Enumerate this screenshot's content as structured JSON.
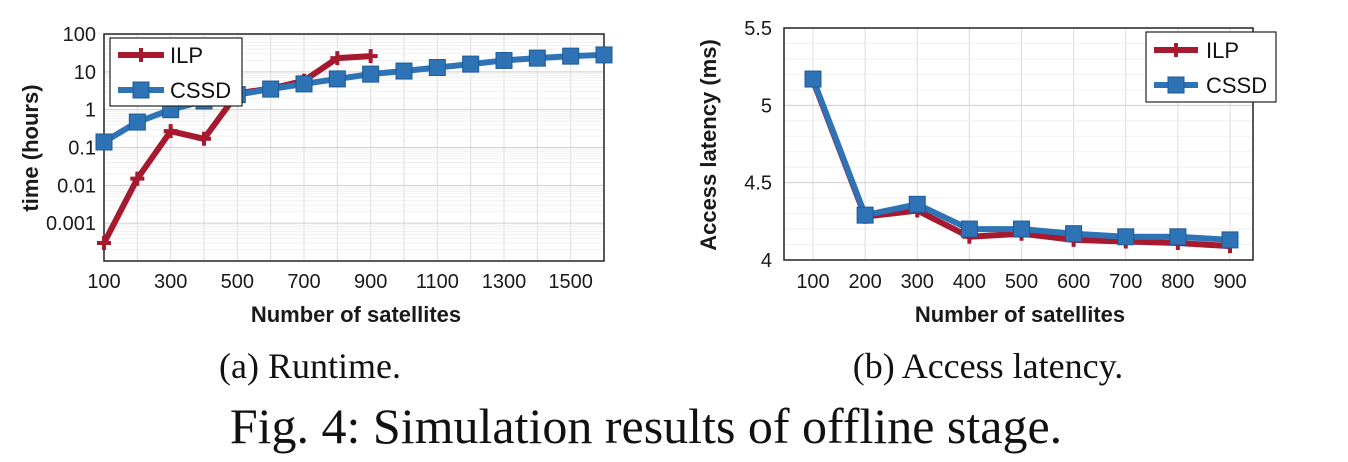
{
  "chart_data": [
    {
      "type": "line",
      "ylabel": "time (hours)",
      "xlabel": "Number of satellites",
      "yscale": "log",
      "ylim": [
        0.0001,
        100
      ],
      "xlim": [
        100,
        1600
      ],
      "x_ticks": [
        "100",
        "300",
        "500",
        "700",
        "900",
        "1100",
        "1300",
        "1500"
      ],
      "y_ticks": [
        "0.001",
        "0.01",
        "0.1",
        "1",
        "10",
        "100"
      ],
      "grid": true,
      "legend": "top-left",
      "series": [
        {
          "name": "ILP",
          "color": "#a6192e",
          "marker": "plus",
          "x": [
            100,
            200,
            300,
            400,
            500,
            600,
            700,
            800,
            900
          ],
          "values": [
            0.0003,
            0.015,
            0.27,
            0.17,
            2.7,
            3.6,
            5.8,
            23,
            26
          ]
        },
        {
          "name": "CSSD",
          "color": "#2e73b5",
          "marker": "square",
          "x": [
            100,
            200,
            300,
            400,
            500,
            600,
            700,
            800,
            900,
            1000,
            1100,
            1200,
            1300,
            1400,
            1500,
            1600
          ],
          "values": [
            0.14,
            0.47,
            1.0,
            1.7,
            2.5,
            3.5,
            4.8,
            6.5,
            8.7,
            10.5,
            13,
            16,
            20,
            23,
            26,
            28
          ]
        }
      ],
      "caption": "(a) Runtime."
    },
    {
      "type": "line",
      "ylabel": "Access latency (ms)",
      "xlabel": "Number of satellites",
      "ylim": [
        4,
        5.5
      ],
      "categories": [
        "100",
        "200",
        "300",
        "400",
        "500",
        "600",
        "700",
        "800",
        "900"
      ],
      "y_ticks": [
        "4",
        "4.5",
        "5",
        "5.5"
      ],
      "grid": true,
      "legend": "top-right",
      "series": [
        {
          "name": "ILP",
          "color": "#a6192e",
          "marker": "plus",
          "values": [
            5.16,
            4.28,
            4.32,
            4.15,
            4.17,
            4.13,
            4.12,
            4.11,
            4.09
          ]
        },
        {
          "name": "CSSD",
          "color": "#2e73b5",
          "marker": "square",
          "values": [
            5.17,
            4.29,
            4.36,
            4.2,
            4.2,
            4.17,
            4.15,
            4.15,
            4.13
          ]
        }
      ],
      "caption": "(b) Access latency."
    }
  ],
  "figure_caption": "Fig. 4: Simulation results of offline stage."
}
